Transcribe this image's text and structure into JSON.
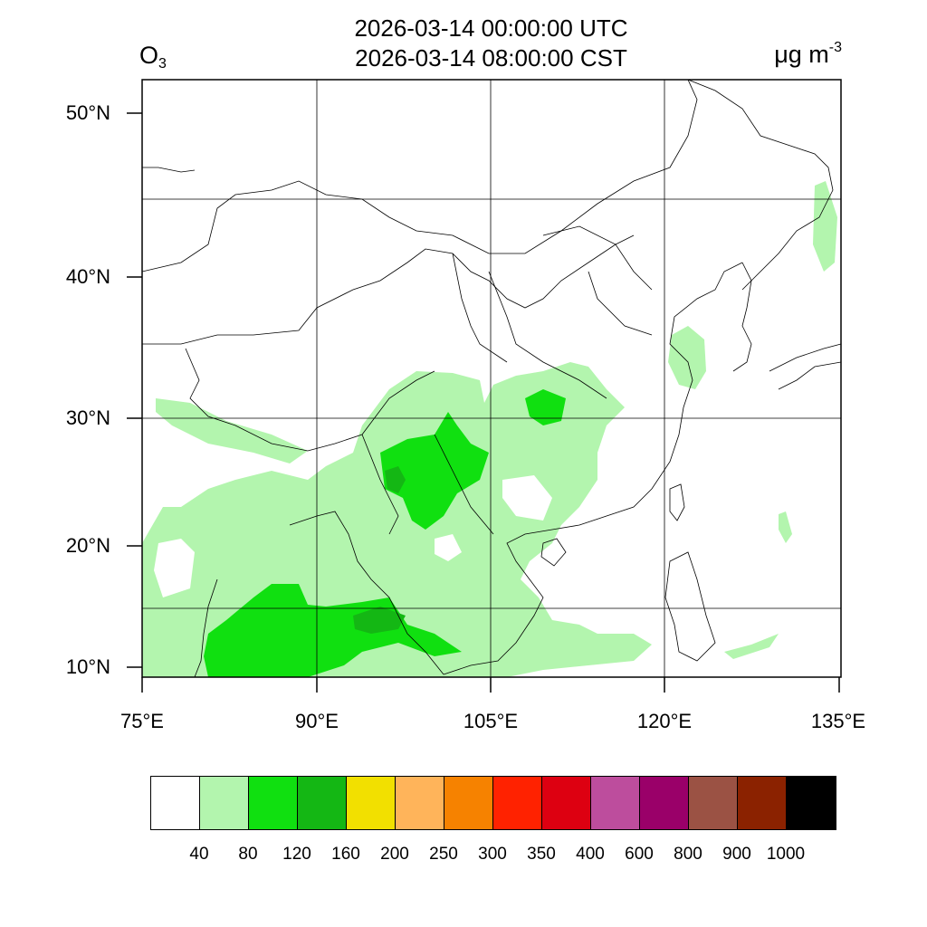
{
  "header": {
    "title_utc": "2026-03-14 00:00:00 UTC",
    "title_cst": "2026-03-14 08:00:00 CST",
    "species": "O",
    "species_subscript": "3",
    "units": "μg m",
    "units_superscript": "-3"
  },
  "axes": {
    "lon_range": [
      75,
      135
    ],
    "lat_range": [
      9,
      52
    ],
    "lat_ticks": [
      {
        "value": 50,
        "label": "50°N"
      },
      {
        "value": 40,
        "label": "40°N"
      },
      {
        "value": 30,
        "label": "30°N"
      },
      {
        "value": 20,
        "label": "20°N"
      },
      {
        "value": 10,
        "label": "10°N"
      }
    ],
    "lon_ticks": [
      {
        "value": 75,
        "label": "75°E"
      },
      {
        "value": 90,
        "label": "90°E"
      },
      {
        "value": 105,
        "label": "105°E"
      },
      {
        "value": 120,
        "label": "120°E"
      },
      {
        "value": 135,
        "label": "135°E"
      }
    ]
  },
  "colorbar": {
    "colors": [
      "#ffffff",
      "#b3f5ae",
      "#10e010",
      "#14b714",
      "#f2e000",
      "#ffb45a",
      "#f68200",
      "#ff2200",
      "#dd0011",
      "#bd4d9d",
      "#9a0069",
      "#9b5244",
      "#8b2200",
      "#000000"
    ],
    "labels": [
      "40",
      "80",
      "120",
      "160",
      "200",
      "250",
      "300",
      "350",
      "400",
      "600",
      "800",
      "900",
      "1000"
    ]
  },
  "colors": {
    "level_40_80": "#b3f5ae",
    "level_80_120": "#10e010",
    "level_120_160": "#14b714"
  }
}
